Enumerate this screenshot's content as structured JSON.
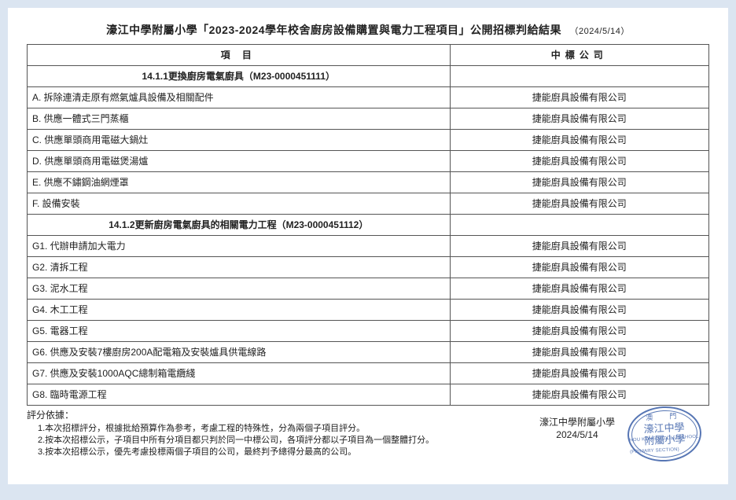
{
  "title": "濠江中學附屬小學「2023-2024學年校舍廚房設備購置與電力工程項目」公開招標判給結果",
  "title_date": "（2024/5/14）",
  "headers": {
    "item": "項 目",
    "company": "中標公司"
  },
  "section1": {
    "heading": "14.1.1更換廚房電氣廚具（M23-0000451111）",
    "rows": [
      {
        "item": "A. 拆除連清走原有燃氣爐具設備及相關配件",
        "company": "捷能廚具設備有限公司"
      },
      {
        "item": "B. 供應一體式三門蒸櫃",
        "company": "捷能廚具設備有限公司"
      },
      {
        "item": "C. 供應單頭商用電磁大鍋灶",
        "company": "捷能廚具設備有限公司"
      },
      {
        "item": "D. 供應單頭商用電磁煲湯爐",
        "company": "捷能廚具設備有限公司"
      },
      {
        "item": "E. 供應不鏽鋼油網煙罩",
        "company": "捷能廚具設備有限公司"
      },
      {
        "item": "F. 設備安裝",
        "company": "捷能廚具設備有限公司"
      }
    ]
  },
  "section2": {
    "heading": "14.1.2更新廚房電氣廚具的相關電力工程（M23-0000451112）",
    "rows": [
      {
        "item": "G1. 代辦申請加大電力",
        "company": "捷能廚具設備有限公司"
      },
      {
        "item": "G2. 清拆工程",
        "company": "捷能廚具設備有限公司"
      },
      {
        "item": "G3. 泥水工程",
        "company": "捷能廚具設備有限公司"
      },
      {
        "item": "G4. 木工工程",
        "company": "捷能廚具設備有限公司"
      },
      {
        "item": "G5. 電器工程",
        "company": "捷能廚具設備有限公司"
      },
      {
        "item": "G6. 供應及安裝7樓廚房200A配電箱及安裝爐具供電線路",
        "company": "捷能廚具設備有限公司"
      },
      {
        "item": "G7. 供應及安裝1000AQC總制箱電纜綫",
        "company": "捷能廚具設備有限公司"
      },
      {
        "item": "G8. 臨時電源工程",
        "company": "捷能廚具設備有限公司"
      }
    ]
  },
  "footer": {
    "label": "評分依據：",
    "notes": [
      "1.本次招標評分，根據批給預算作為参考，考慮工程的特殊性，分為兩個子項目評分。",
      "2.按本次招標公示，子項目中所有分項目都只判於同一中標公司，各項評分都以子項目為一個整體打分。",
      "3.按本次招標公示，優先考慮投標兩個子項目的公司，最終判予總得分最高的公司。"
    ],
    "org": "濠江中學附屬小學",
    "date": "2024/5/14",
    "stamp_top": "澳　門",
    "stamp_line1": "濠江中學",
    "stamp_line2": "附屬小學",
    "stamp_bottom": "HOU KONG MIDDLE SCHOOL (PRIMARY SECTION)"
  },
  "styling": {
    "page_bg": "#dbe5f1",
    "paper_bg": "#ffffff",
    "border_color": "#555555",
    "text_color": "#222222",
    "stamp_color": "#3a5fa8",
    "title_fontsize": 14,
    "body_fontsize": 12,
    "footer_fontsize": 11
  }
}
